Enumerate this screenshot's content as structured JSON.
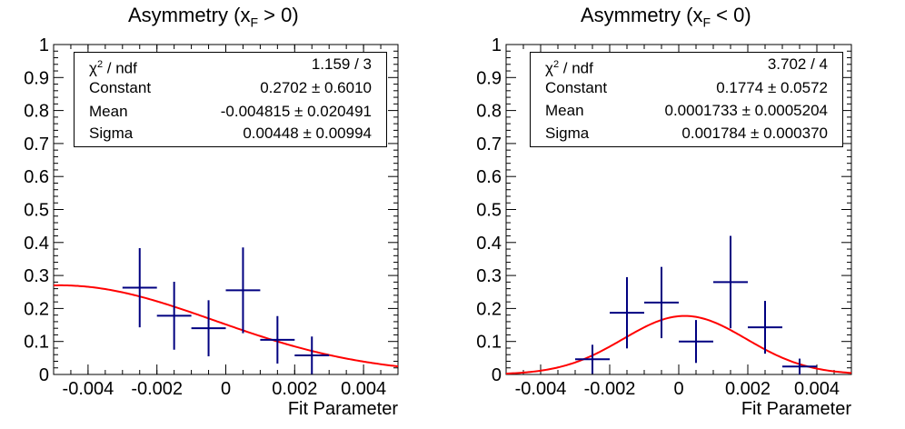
{
  "chart_data": [
    {
      "type": "scatter",
      "title_main": "Asymmetry (x",
      "title_sub": "F",
      "title_tail": " > 0)",
      "xlabel": "Fit Parameter",
      "xlim": [
        -0.005,
        0.005
      ],
      "ylim": [
        0,
        1
      ],
      "xticks": [
        -0.004,
        -0.002,
        0,
        0.002,
        0.004
      ],
      "xtick_labels": [
        "-0.004",
        "-0.002",
        "0",
        "0.002",
        "0.004"
      ],
      "yticks": [
        0,
        0.1,
        0.2,
        0.3,
        0.4,
        0.5,
        0.6,
        0.7,
        0.8,
        0.9,
        1
      ],
      "ytick_labels": [
        "0",
        "0.1",
        "0.2",
        "0.3",
        "0.4",
        "0.5",
        "0.6",
        "0.7",
        "0.8",
        "0.9",
        "1"
      ],
      "points": [
        {
          "x": -0.0025,
          "y": 0.263,
          "ex": 0.0005,
          "ey": 0.12
        },
        {
          "x": -0.0015,
          "y": 0.178,
          "ex": 0.0005,
          "ey": 0.103
        },
        {
          "x": -0.0005,
          "y": 0.14,
          "ex": 0.0005,
          "ey": 0.085
        },
        {
          "x": 0.0005,
          "y": 0.255,
          "ex": 0.0005,
          "ey": 0.13
        },
        {
          "x": 0.0015,
          "y": 0.105,
          "ex": 0.0005,
          "ey": 0.072
        },
        {
          "x": 0.0025,
          "y": 0.058,
          "ex": 0.0005,
          "ey": 0.057
        }
      ],
      "fit": {
        "function": "gaus",
        "constant": 0.2702,
        "mean": -0.004815,
        "sigma": 0.00448
      },
      "stats": [
        {
          "key_main": "χ",
          "key_sup": "2",
          "key_tail": " / ndf",
          "value": "1.159 / 3"
        },
        {
          "key_main": "Constant",
          "key_sup": "",
          "key_tail": "",
          "value": "0.2702 ± 0.6010"
        },
        {
          "key_main": "Mean",
          "key_sup": "",
          "key_tail": "",
          "value": "-0.004815 ± 0.020491"
        },
        {
          "key_main": "Sigma",
          "key_sup": "",
          "key_tail": "",
          "value": "0.00448 ± 0.00994"
        }
      ]
    },
    {
      "type": "scatter",
      "title_main": "Asymmetry (x",
      "title_sub": "F",
      "title_tail": " < 0)",
      "xlabel": "Fit Parameter",
      "xlim": [
        -0.005,
        0.005
      ],
      "ylim": [
        0,
        1
      ],
      "xticks": [
        -0.004,
        -0.002,
        0,
        0.002,
        0.004
      ],
      "xtick_labels": [
        "-0.004",
        "-0.002",
        "0",
        "0.002",
        "0.004"
      ],
      "yticks": [
        0,
        0.1,
        0.2,
        0.3,
        0.4,
        0.5,
        0.6,
        0.7,
        0.8,
        0.9,
        1
      ],
      "ytick_labels": [
        "0",
        "0.1",
        "0.2",
        "0.3",
        "0.4",
        "0.5",
        "0.6",
        "0.7",
        "0.8",
        "0.9",
        "1"
      ],
      "points": [
        {
          "x": -0.0025,
          "y": 0.046,
          "ex": 0.0005,
          "ey": 0.044
        },
        {
          "x": -0.0015,
          "y": 0.187,
          "ex": 0.0005,
          "ey": 0.108
        },
        {
          "x": -0.0005,
          "y": 0.218,
          "ex": 0.0005,
          "ey": 0.108
        },
        {
          "x": 0.0005,
          "y": 0.1,
          "ex": 0.0005,
          "ey": 0.065
        },
        {
          "x": 0.0015,
          "y": 0.28,
          "ex": 0.0005,
          "ey": 0.14
        },
        {
          "x": 0.0025,
          "y": 0.143,
          "ex": 0.0005,
          "ey": 0.08
        },
        {
          "x": 0.0035,
          "y": 0.024,
          "ex": 0.0005,
          "ey": 0.024
        }
      ],
      "fit": {
        "function": "gaus",
        "constant": 0.1774,
        "mean": 0.0001733,
        "sigma": 0.001784
      },
      "stats": [
        {
          "key_main": "χ",
          "key_sup": "2",
          "key_tail": " / ndf",
          "value": "3.702 / 4"
        },
        {
          "key_main": "Constant",
          "key_sup": "",
          "key_tail": "",
          "value": "0.1774 ± 0.0572"
        },
        {
          "key_main": "Mean",
          "key_sup": "",
          "key_tail": "",
          "value": "0.0001733 ± 0.0005204"
        },
        {
          "key_main": "Sigma",
          "key_sup": "",
          "key_tail": "",
          "value": "0.001784 ± 0.000370"
        }
      ]
    }
  ],
  "colors": {
    "points": "#000080",
    "fit": "#ff0000",
    "axis": "#000000"
  }
}
